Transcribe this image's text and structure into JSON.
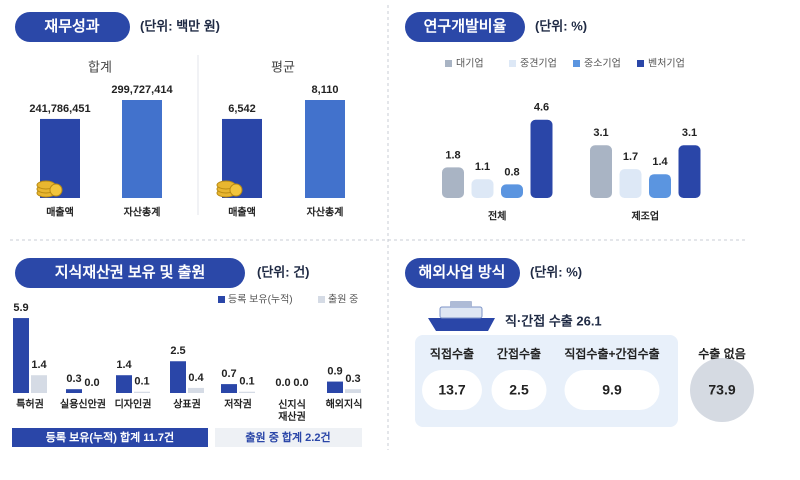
{
  "chart_data": [
    {
      "type": "bar",
      "title": "재무성과",
      "unit": "(단위: 백만 원)",
      "subtitle": "합계",
      "categories": [
        "매출액",
        "자산총계"
      ],
      "values": [
        241786451,
        299727414
      ],
      "value_labels": [
        "241,786,451",
        "299,727,414"
      ],
      "colors": [
        "#2a46a8",
        "#4272cc"
      ]
    },
    {
      "type": "bar",
      "subtitle": "평균",
      "categories": [
        "매출액",
        "자산총계"
      ],
      "values": [
        6542,
        8110
      ],
      "value_labels": [
        "6,542",
        "8,110"
      ],
      "colors": [
        "#2a46a8",
        "#4272cc"
      ]
    },
    {
      "type": "grouped_bar",
      "title": "연구개발비율",
      "unit": "(단위: %)",
      "categories": [
        "전체",
        "제조업"
      ],
      "series": [
        {
          "name": "대기업",
          "color": "#a9b4c4",
          "values": [
            1.8,
            3.1
          ]
        },
        {
          "name": "중견기업",
          "color": "#dde8f6",
          "values": [
            1.1,
            1.7
          ]
        },
        {
          "name": "중소기업",
          "color": "#5b95e0",
          "values": [
            0.8,
            1.4
          ]
        },
        {
          "name": "벤처기업",
          "color": "#2a46a8",
          "values": [
            4.6,
            3.1
          ]
        }
      ]
    },
    {
      "type": "grouped_bar",
      "title": "지식재산권 보유 및 출원",
      "unit": "(단위: 건)",
      "categories": [
        "특허권",
        "실용신안권",
        "디자인권",
        "상표권",
        "저작권",
        "신지식 재산권",
        "해외지식"
      ],
      "series": [
        {
          "name": "등록 보유(누적)",
          "color": "#2a46a8",
          "values": [
            5.9,
            0.3,
            1.4,
            2.5,
            0.7,
            0.0,
            0.9
          ],
          "value_labels": [
            "5.9",
            "0.3",
            "1.4",
            "2.5",
            "0.7",
            "0.0",
            "0.9"
          ]
        },
        {
          "name": "출원 중",
          "color": "#d5dbe5",
          "values": [
            1.4,
            0.0,
            0.1,
            0.4,
            0.1,
            0.0,
            0.3
          ],
          "value_labels": [
            "1.4",
            "0.0",
            "0.1",
            "0.4",
            "0.1",
            "0.0",
            "0.3"
          ]
        }
      ],
      "totals": [
        "등록 보유(누적) 합계 11.7건",
        "출원 중 합계 2.2건"
      ]
    }
  ],
  "overseas": {
    "title": "해외사업 방식",
    "unit": "(단위: %)",
    "export_label": "직·간접 수출 26.1",
    "items": [
      {
        "label": "직접수출",
        "value": 13.7
      },
      {
        "label": "간접수출",
        "value": 2.5
      },
      {
        "label": "직접수출+간접수출",
        "value": 9.9
      }
    ],
    "none": {
      "label": "수출 없음",
      "value": 73.9
    }
  }
}
